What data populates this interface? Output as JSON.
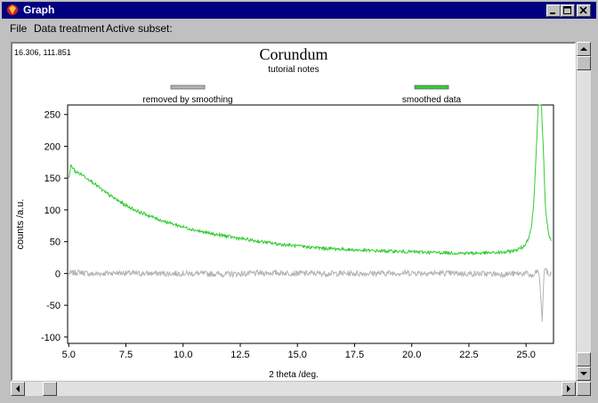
{
  "window": {
    "title": "Graph",
    "menu": [
      "File",
      "Data treatment",
      "Active subset:"
    ]
  },
  "graph": {
    "coord_readout": "16.306, 111.851"
  },
  "chart_data": {
    "type": "line",
    "title": "Corundum",
    "subtitle": "tutorial notes",
    "xlabel": "2 theta /deg.",
    "ylabel": "counts /a.u.",
    "xlim": [
      4.95,
      26.2
    ],
    "ylim": [
      -110,
      265
    ],
    "xticks": [
      5.0,
      7.5,
      10.0,
      12.5,
      15.0,
      17.5,
      20.0,
      22.5,
      25.0
    ],
    "xtick_labels": [
      "5.0",
      "7.5",
      "10.0",
      "12.5",
      "15.0",
      "17.5",
      "20.0",
      "22.5",
      "25.0"
    ],
    "yticks": [
      250,
      200,
      150,
      100,
      50,
      0,
      -50,
      -100
    ],
    "ytick_labels": [
      "250",
      "200",
      "150",
      "100",
      "50",
      "0",
      "-50",
      "-100"
    ],
    "grid": false,
    "legend_position": "top",
    "series": [
      {
        "name": "removed by smoothing",
        "color": "#b4b4b4",
        "x": [
          5.0,
          5.5,
          6.0,
          7.0,
          8.0,
          10.0,
          12.0,
          14.0,
          16.0,
          18.0,
          20.0,
          22.0,
          24.0,
          25.0,
          25.3,
          25.5,
          25.6,
          25.7,
          25.8,
          26.0,
          26.1
        ],
        "y": [
          0,
          2,
          -1,
          1,
          0,
          0,
          -1,
          1,
          0,
          0,
          1,
          0,
          -1,
          0,
          -5,
          5,
          -10,
          -75,
          10,
          -3,
          0
        ]
      },
      {
        "name": "smoothed data",
        "color": "#33cc33",
        "x": [
          5.0,
          5.1,
          5.3,
          5.6,
          6.0,
          6.5,
          7.0,
          7.5,
          8.0,
          9.0,
          10.0,
          11.0,
          12.0,
          13.0,
          14.0,
          15.0,
          16.0,
          17.0,
          18.0,
          19.0,
          20.0,
          21.0,
          22.0,
          23.0,
          24.0,
          24.5,
          24.9,
          25.1,
          25.25,
          25.35,
          25.45,
          25.55,
          25.65,
          25.75,
          25.85,
          26.0,
          26.1
        ],
        "y": [
          150,
          170,
          160,
          155,
          145,
          130,
          118,
          107,
          98,
          84,
          73,
          64,
          58,
          52,
          47,
          43,
          40,
          38,
          36,
          35,
          34,
          33,
          32,
          32,
          33,
          36,
          42,
          55,
          75,
          120,
          200,
          280,
          280,
          200,
          100,
          60,
          50
        ]
      }
    ]
  }
}
